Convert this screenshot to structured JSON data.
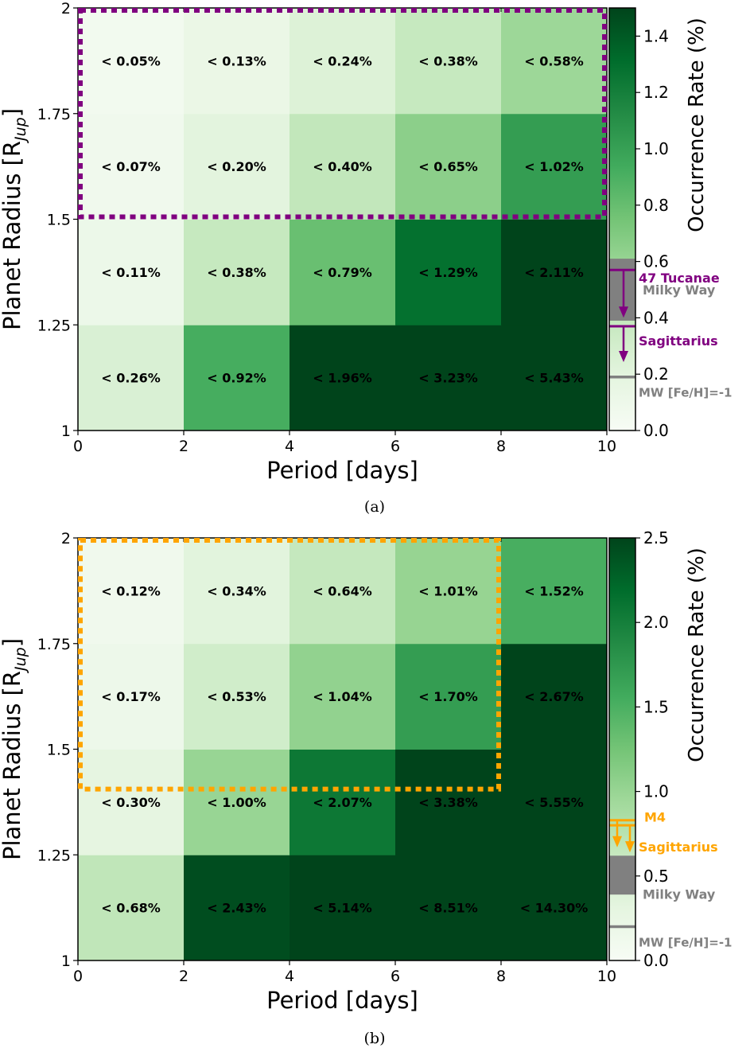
{
  "chart_data": [
    {
      "type": "heatmap",
      "caption": "(a)",
      "xlabel": "Period [days]",
      "ylabel": "Planet Radius [R",
      "ylabel_sub": "Jup",
      "ylabel_close": "]",
      "xlim": [
        0,
        10
      ],
      "ylim": [
        1,
        2
      ],
      "x_edges": [
        0,
        2,
        4,
        6,
        8,
        10
      ],
      "y_edges": [
        1,
        1.25,
        1.5,
        1.75,
        2
      ],
      "xticks": [
        "0",
        "2",
        "4",
        "6",
        "8",
        "10"
      ],
      "yticks": [
        "1",
        "1.25",
        "1.5",
        "1.75",
        "2"
      ],
      "cells": [
        [
          0.26,
          0.92,
          1.96,
          3.23,
          5.43
        ],
        [
          0.11,
          0.38,
          0.79,
          1.29,
          2.11
        ],
        [
          0.07,
          0.2,
          0.4,
          0.65,
          1.02
        ],
        [
          0.05,
          0.13,
          0.24,
          0.38,
          0.58
        ]
      ],
      "labels": [
        [
          "< 0.26%",
          "< 0.92%",
          "< 1.96%",
          "< 3.23%",
          "< 5.43%"
        ],
        [
          "< 0.11%",
          "< 0.38%",
          "< 0.79%",
          "< 1.29%",
          "< 2.11%"
        ],
        [
          "< 0.07%",
          "< 0.20%",
          "< 0.40%",
          "< 0.65%",
          "< 1.02%"
        ],
        [
          "< 0.05%",
          "< 0.13%",
          "< 0.24%",
          "< 0.38%",
          "< 0.58%"
        ]
      ],
      "region": {
        "x": [
          0,
          10
        ],
        "y": [
          1.5,
          2
        ],
        "color": "#800080"
      },
      "colorbar": {
        "label": "Occurrence Rate (%)",
        "min": 0,
        "max": 1.5,
        "ticks": [
          "0.0",
          "0.2",
          "0.4",
          "0.6",
          "0.8",
          "1.0",
          "1.2",
          "1.4"
        ],
        "tick_values": [
          0,
          0.2,
          0.4,
          0.6,
          0.8,
          1.0,
          1.2,
          1.4
        ],
        "band": {
          "label": "Milky Way",
          "from": 0.39,
          "to": 0.61,
          "color": "#808080"
        },
        "lines": [
          {
            "label": "MW [Fe/H]=-1",
            "value": 0.19,
            "color": "#808080"
          }
        ],
        "limits": [
          {
            "label": "47 Tucanae",
            "value": 0.57,
            "color": "#800080"
          },
          {
            "label": "Sagittarius",
            "value": 0.37,
            "color": "#800080"
          }
        ]
      }
    },
    {
      "type": "heatmap",
      "caption": "(b)",
      "xlabel": "Period [days]",
      "ylabel": "Planet Radius [R",
      "ylabel_sub": "Jup",
      "ylabel_close": "]",
      "xlim": [
        0,
        10
      ],
      "ylim": [
        1,
        2
      ],
      "x_edges": [
        0,
        2,
        4,
        6,
        8,
        10
      ],
      "y_edges": [
        1,
        1.25,
        1.5,
        1.75,
        2
      ],
      "xticks": [
        "0",
        "2",
        "4",
        "6",
        "8",
        "10"
      ],
      "yticks": [
        "1",
        "1.25",
        "1.5",
        "1.75",
        "2"
      ],
      "cells": [
        [
          0.68,
          2.43,
          5.14,
          8.51,
          14.3
        ],
        [
          0.3,
          1.0,
          2.07,
          3.38,
          5.55
        ],
        [
          0.17,
          0.53,
          1.04,
          1.7,
          2.67
        ],
        [
          0.12,
          0.34,
          0.64,
          1.01,
          1.52
        ]
      ],
      "labels": [
        [
          "< 0.68%",
          "< 2.43%",
          "< 5.14%",
          "< 8.51%",
          "< 14.30%"
        ],
        [
          "< 0.30%",
          "< 1.00%",
          "< 2.07%",
          "< 3.38%",
          "< 5.55%"
        ],
        [
          "< 0.17%",
          "< 0.53%",
          "< 1.04%",
          "< 1.70%",
          "< 2.67%"
        ],
        [
          "< 0.12%",
          "< 0.34%",
          "< 0.64%",
          "< 1.01%",
          "< 1.52%"
        ]
      ],
      "region": {
        "x": [
          0,
          8
        ],
        "y": [
          1.4,
          2
        ],
        "color": "#FFA500"
      },
      "colorbar": {
        "label": "Occurrence Rate (%)",
        "min": 0,
        "max": 2.5,
        "ticks": [
          "0.0",
          "0.5",
          "1.0",
          "1.5",
          "2.0",
          "2.5"
        ],
        "tick_values": [
          0,
          0.5,
          1.0,
          1.5,
          2.0,
          2.5
        ],
        "band": {
          "label": "Milky Way",
          "from": 0.39,
          "to": 0.62,
          "color": "#808080"
        },
        "lines": [
          {
            "label": "MW [Fe/H]=-1",
            "value": 0.2,
            "color": "#808080"
          }
        ],
        "limits": [
          {
            "label": "M4",
            "value": 0.83,
            "color": "#FFA500"
          },
          {
            "label": "Sagittarius",
            "value": 0.8,
            "color": "#FFA500"
          }
        ]
      }
    }
  ]
}
